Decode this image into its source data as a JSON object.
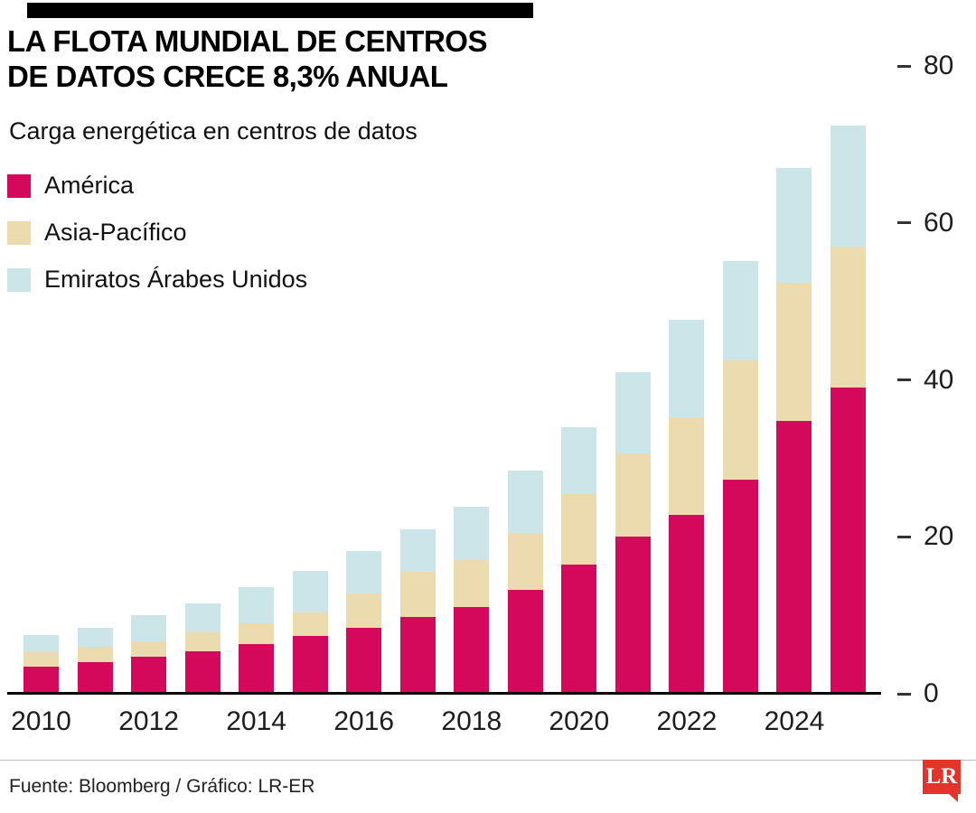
{
  "header": {
    "title_line1": "LA FLOTA MUNDIAL DE CENTROS",
    "title_line2": "DE DATOS CRECE 8,3% ANUAL",
    "subtitle": "Carga energética en centros de datos"
  },
  "legend": [
    {
      "label": "América",
      "color": "#D5095B"
    },
    {
      "label": "Asia-Pacífico",
      "color": "#ECDBAE"
    },
    {
      "label": "Emiratos Árabes Unidos",
      "color": "#CCE5E8"
    }
  ],
  "chart_data": {
    "type": "bar",
    "stacked": true,
    "title": "LA FLOTA MUNDIAL DE CENTROS DE DATOS CRECE 8,3% ANUAL",
    "subtitle": "Carga energética en centros de datos",
    "categories": [
      2010,
      2011,
      2012,
      2013,
      2014,
      2015,
      2016,
      2017,
      2018,
      2019,
      2020,
      2021,
      2022,
      2023,
      2024,
      2025
    ],
    "series": [
      {
        "name": "América",
        "color": "#D5095B",
        "values": [
          3.5,
          4.0,
          4.7,
          5.4,
          6.3,
          7.4,
          8.4,
          9.8,
          11.0,
          13.2,
          16.5,
          20.0,
          22.8,
          27.3,
          34.8,
          39.0
        ]
      },
      {
        "name": "Asia-Pacífico",
        "color": "#ECDBAE",
        "values": [
          1.8,
          2.0,
          2.0,
          2.4,
          2.7,
          3.0,
          4.4,
          5.7,
          6.0,
          7.3,
          9.0,
          10.6,
          12.4,
          15.2,
          17.6,
          18.0
        ]
      },
      {
        "name": "Emiratos Árabes Unidos",
        "color": "#CCE5E8",
        "values": [
          2.2,
          2.4,
          3.3,
          3.7,
          4.6,
          5.2,
          5.4,
          5.5,
          6.8,
          7.9,
          8.5,
          10.4,
          12.5,
          12.6,
          14.6,
          15.4
        ]
      }
    ],
    "x_tick_labels": [
      "2010",
      "2012",
      "2014",
      "2016",
      "2018",
      "2020",
      "2022",
      "2024"
    ],
    "y_ticks": [
      0,
      20,
      40,
      60,
      80
    ],
    "ylim": [
      0,
      80
    ],
    "xlabel": "",
    "ylabel": "",
    "grid": false,
    "legend_position": "top-left"
  },
  "footer": {
    "source": "Fuente: Bloomberg / Gráfico: LR-ER",
    "logo_text": "LR"
  }
}
